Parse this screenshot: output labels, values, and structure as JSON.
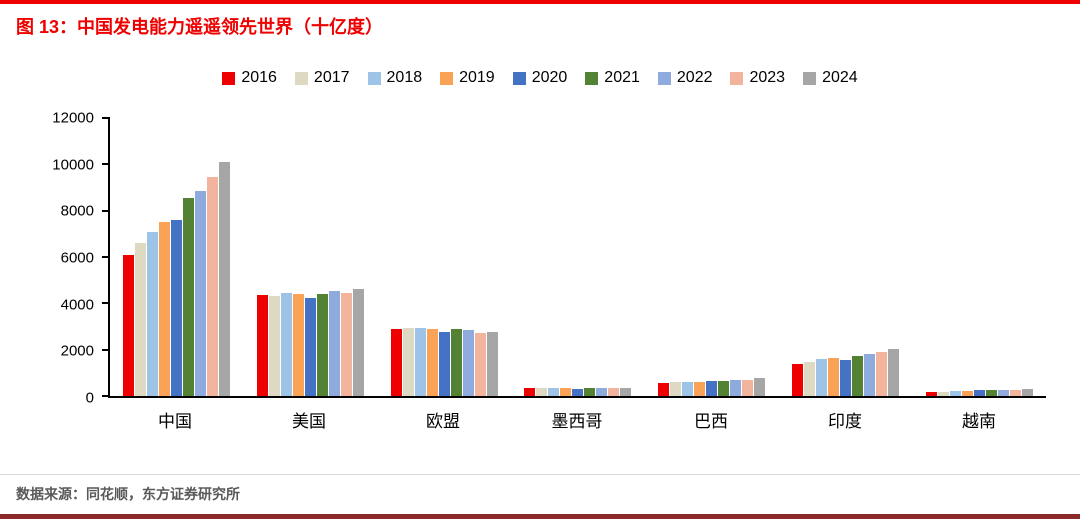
{
  "header": {
    "figure_label": "图 13：",
    "title": "中国发电能力遥遥领先世界（十亿度）"
  },
  "footer": {
    "source": "数据来源：同花顺，东方证券研究所"
  },
  "colors": {
    "accent_red": "#ee0000",
    "bottom_rule": "#8a2a2b",
    "footer_text": "#595959"
  },
  "chart_data": {
    "type": "bar",
    "title": "图 13：中国发电能力遥遥领先世界（十亿度）",
    "xlabel": "",
    "ylabel": "",
    "ylim": [
      0,
      12000
    ],
    "yticks": [
      0,
      2000,
      4000,
      6000,
      8000,
      10000,
      12000
    ],
    "grid": false,
    "legend_position": "top-center",
    "categories": [
      "中国",
      "美国",
      "欧盟",
      "墨西哥",
      "巴西",
      "印度",
      "越南"
    ],
    "series": [
      {
        "name": "2016",
        "color": "#ee0000",
        "values": [
          6100,
          4350,
          2900,
          330,
          580,
          1400,
          180
        ]
      },
      {
        "name": "2017",
        "color": "#ddd9c3",
        "values": [
          6600,
          4300,
          2950,
          330,
          590,
          1480,
          190
        ]
      },
      {
        "name": "2018",
        "color": "#9dc3e6",
        "values": [
          7100,
          4450,
          2950,
          340,
          600,
          1580,
          210
        ]
      },
      {
        "name": "2019",
        "color": "#faa255",
        "values": [
          7500,
          4400,
          2900,
          340,
          620,
          1620,
          230
        ]
      },
      {
        "name": "2020",
        "color": "#4472c4",
        "values": [
          7600,
          4250,
          2750,
          320,
          630,
          1560,
          240
        ]
      },
      {
        "name": "2021",
        "color": "#548235",
        "values": [
          8550,
          4400,
          2900,
          330,
          660,
          1710,
          250
        ]
      },
      {
        "name": "2022",
        "color": "#8faadc",
        "values": [
          8850,
          4550,
          2850,
          340,
          680,
          1820,
          260
        ]
      },
      {
        "name": "2023",
        "color": "#f2b49c",
        "values": [
          9450,
          4450,
          2700,
          340,
          710,
          1920,
          280
        ]
      },
      {
        "name": "2024",
        "color": "#a6a6a6",
        "values": [
          10100,
          4600,
          2750,
          350,
          760,
          2030,
          300
        ]
      }
    ]
  }
}
